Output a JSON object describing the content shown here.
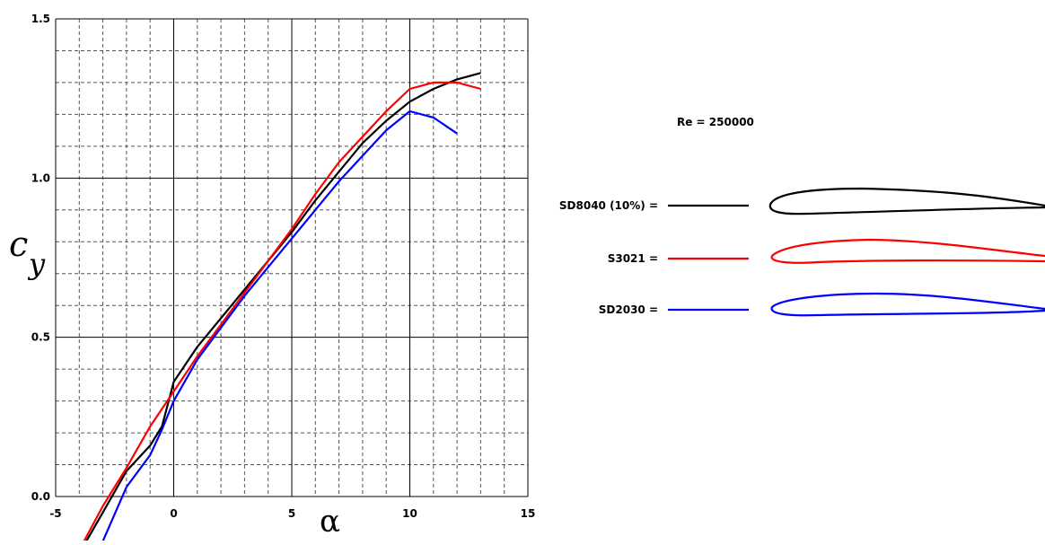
{
  "chart_data": {
    "type": "line",
    "title": "",
    "xlabel": "α",
    "ylabel_main": "c",
    "ylabel_sub": "y",
    "xlim": [
      -5,
      15
    ],
    "ylim": [
      0.0,
      1.5
    ],
    "x_ticks": [
      {
        "value": -5,
        "label": "-5"
      },
      {
        "value": 0,
        "label": "0"
      },
      {
        "value": 5,
        "label": "5"
      },
      {
        "value": 10,
        "label": "10"
      },
      {
        "value": 15,
        "label": "15"
      }
    ],
    "y_ticks": [
      {
        "value": 0.0,
        "label": "0.0"
      },
      {
        "value": 0.5,
        "label": "0.5"
      },
      {
        "value": 1.0,
        "label": "1.0"
      },
      {
        "value": 1.5,
        "label": "1.5"
      }
    ],
    "grid": true,
    "annotation": "Re = 250000",
    "legend_position": "right",
    "series": [
      {
        "name": "SD8040 (10%) =",
        "color": "#000000",
        "x": [
          -3.7,
          -3.0,
          -2.0,
          -1.0,
          -0.5,
          0.0,
          1.0,
          2.0,
          3.0,
          4.0,
          5.0,
          6.0,
          7.0,
          8.0,
          9.0,
          10.0,
          11.0,
          12.0,
          13.0
        ],
        "y": [
          -0.14,
          -0.05,
          0.08,
          0.16,
          0.22,
          0.36,
          0.47,
          0.56,
          0.65,
          0.74,
          0.83,
          0.93,
          1.02,
          1.11,
          1.18,
          1.24,
          1.28,
          1.31,
          1.33
        ]
      },
      {
        "name": "S3021 =",
        "color": "#ff0000",
        "x": [
          -3.8,
          -3.0,
          -2.0,
          -1.0,
          0.0,
          1.0,
          2.0,
          3.0,
          4.0,
          5.0,
          6.0,
          7.0,
          8.0,
          9.0,
          10.0,
          11.0,
          12.0,
          13.0
        ],
        "y": [
          -0.14,
          -0.03,
          0.09,
          0.22,
          0.33,
          0.44,
          0.54,
          0.64,
          0.74,
          0.84,
          0.95,
          1.05,
          1.13,
          1.21,
          1.28,
          1.3,
          1.3,
          1.28
        ]
      },
      {
        "name": "SD2030 =",
        "color": "#0000ff",
        "x": [
          -3.0,
          -2.0,
          -1.0,
          -0.5,
          0.0,
          1.0,
          2.0,
          3.0,
          4.0,
          5.0,
          6.0,
          7.0,
          8.0,
          9.0,
          10.0,
          11.0,
          12.0
        ],
        "y": [
          -0.14,
          0.03,
          0.13,
          0.21,
          0.3,
          0.43,
          0.53,
          0.63,
          0.72,
          0.81,
          0.9,
          0.99,
          1.07,
          1.15,
          1.21,
          1.19,
          1.14
        ]
      }
    ]
  }
}
